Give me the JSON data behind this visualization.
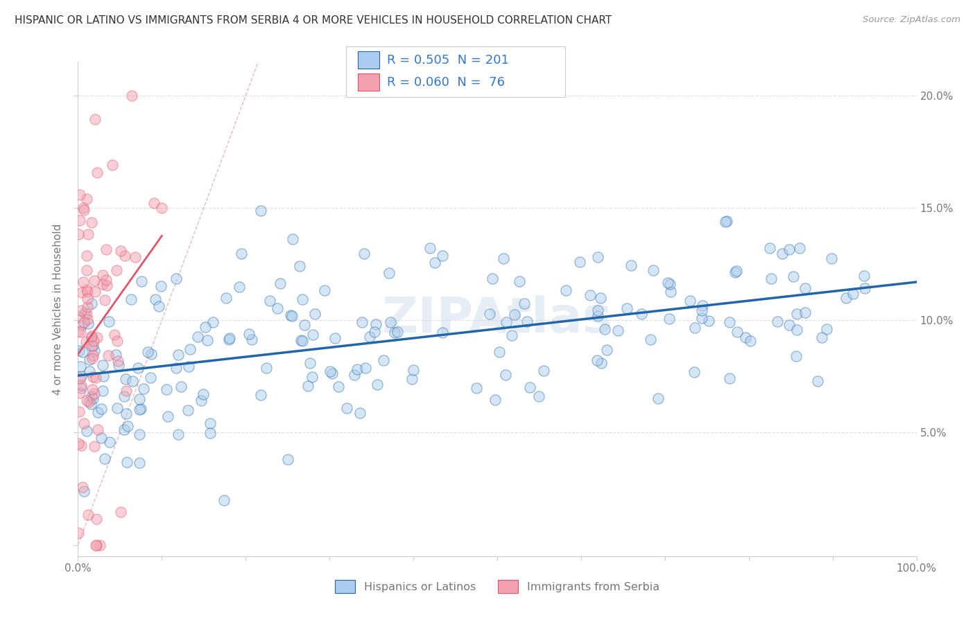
{
  "title": "HISPANIC OR LATINO VS IMMIGRANTS FROM SERBIA 4 OR MORE VEHICLES IN HOUSEHOLD CORRELATION CHART",
  "source": "Source: ZipAtlas.com",
  "ylabel": "4 or more Vehicles in Household",
  "xlim": [
    0.0,
    1.0
  ],
  "ylim": [
    -0.005,
    0.215
  ],
  "xticks": [
    0.0,
    0.1,
    0.2,
    0.3,
    0.4,
    0.5,
    0.6,
    0.7,
    0.8,
    0.9,
    1.0
  ],
  "yticks": [
    0.0,
    0.05,
    0.1,
    0.15,
    0.2
  ],
  "xtick_labels": [
    "0.0%",
    "",
    "",
    "",
    "",
    "",
    "",
    "",
    "",
    "",
    "100.0%"
  ],
  "right_ytick_labels": [
    "",
    "5.0%",
    "10.0%",
    "15.0%",
    "20.0%"
  ],
  "legend_R1": "0.505",
  "legend_N1": "201",
  "legend_R2": "0.060",
  "legend_N2": "76",
  "series1_color": "#aaccee",
  "series2_color": "#f4a0b0",
  "series1_label": "Hispanics or Latinos",
  "series2_label": "Immigrants from Serbia",
  "trend1_color": "#2266aa",
  "trend2_color": "#dd5566",
  "diagonal_color": "#ddaaaa",
  "watermark": "ZIPAtlas",
  "background_color": "#ffffff",
  "grid_color": "#dddddd",
  "title_color": "#333333",
  "axis_color": "#777777",
  "legend_text_color": "#3377cc",
  "seed": 42,
  "n1": 201,
  "n2": 76
}
